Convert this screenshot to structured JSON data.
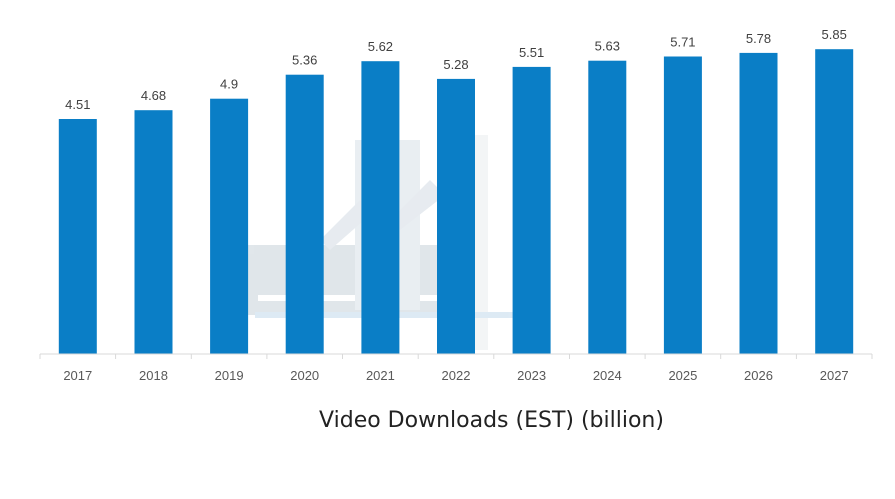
{
  "chart_data": {
    "type": "bar",
    "categories": [
      "2017",
      "2018",
      "2019",
      "2020",
      "2021",
      "2022",
      "2023",
      "2024",
      "2025",
      "2026",
      "2027"
    ],
    "values": [
      4.51,
      4.68,
      4.9,
      5.36,
      5.62,
      5.28,
      5.51,
      5.63,
      5.71,
      5.78,
      5.85
    ],
    "value_labels": [
      "4.51",
      "4.68",
      "4.9",
      "5.36",
      "5.62",
      "5.28",
      "5.51",
      "5.63",
      "5.71",
      "5.78",
      "5.85"
    ],
    "title": "",
    "xlabel": "Video Downloads (EST) (billion)",
    "ylabel": "",
    "ylim": [
      0,
      6
    ],
    "grid": false,
    "bar_color": "#0a7ec6",
    "axis_color": "#d9d9d9"
  }
}
